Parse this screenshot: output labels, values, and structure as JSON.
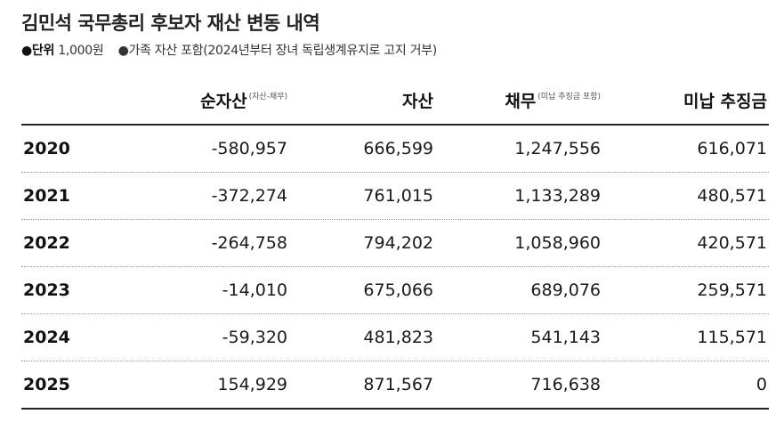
{
  "title": "김민석 국무총리 후보자 재산 변동 내역",
  "notes": {
    "unit_label": "●단위",
    "unit_value": "1,000원",
    "family_note": "●가족 자산 포함(2024년부터 장녀 독립생계유지로 고지 거부)"
  },
  "table": {
    "headers": {
      "net": "순자산",
      "net_sub": "(자산-채무)",
      "asset": "자산",
      "debt": "채무",
      "debt_sub": "(미납 추징금 포함)",
      "tax": "미납 추징금"
    },
    "rows": [
      {
        "year": "2020",
        "net": "-580,957",
        "asset": "666,599",
        "debt": "1,247,556",
        "tax": "616,071"
      },
      {
        "year": "2021",
        "net": "-372,274",
        "asset": "761,015",
        "debt": "1,133,289",
        "tax": "480,571"
      },
      {
        "year": "2022",
        "net": "-264,758",
        "asset": "794,202",
        "debt": "1,058,960",
        "tax": "420,571"
      },
      {
        "year": "2023",
        "net": "-14,010",
        "asset": "675,066",
        "debt": "689,076",
        "tax": "259,571"
      },
      {
        "year": "2024",
        "net": "-59,320",
        "asset": "481,823",
        "debt": "541,143",
        "tax": "115,571"
      },
      {
        "year": "2025",
        "net": "154,929",
        "asset": "871,567",
        "debt": "716,638",
        "tax": "0"
      }
    ]
  }
}
